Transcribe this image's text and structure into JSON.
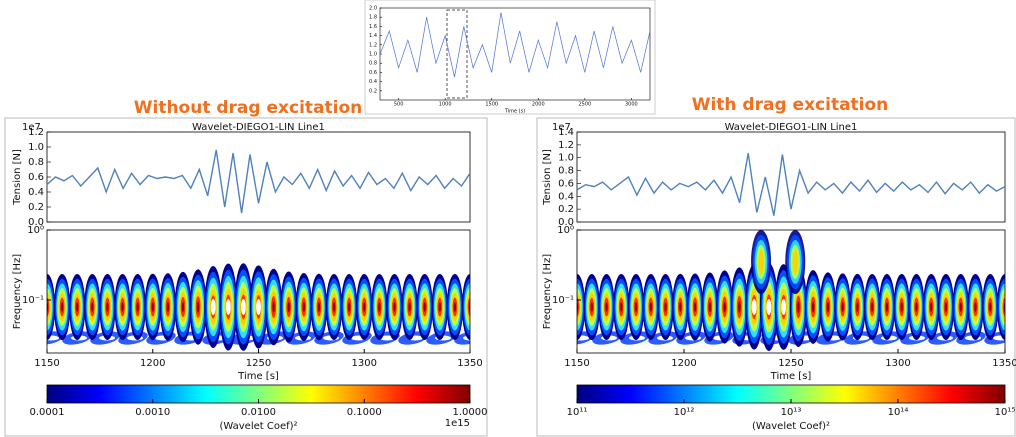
{
  "chart_data": [
    {
      "type": "line",
      "xlabel": "Time (s)",
      "xlim": [
        300,
        3200
      ],
      "ylim": [
        0,
        2
      ],
      "xticks": [
        500,
        1000,
        1500,
        2000,
        2500,
        3000
      ],
      "yticks": [
        0.2,
        0.4,
        0.6,
        0.8,
        {
          "value": 1,
          "label": "1.0"
        },
        1.2,
        1.4,
        1.6,
        1.8,
        {
          "value": 2,
          "label": "2.0"
        }
      ],
      "x": [
        300,
        400,
        500,
        600,
        700,
        800,
        900,
        1000,
        1100,
        1200,
        1300,
        1400,
        1500,
        1600,
        1700,
        1800,
        1900,
        2000,
        2100,
        2200,
        2300,
        2400,
        2500,
        2600,
        2700,
        2800,
        2900,
        3000,
        3100,
        3200
      ],
      "series": [
        {
          "color": "#4a72d8",
          "values": [
            1.0,
            1.5,
            0.7,
            1.3,
            0.6,
            1.8,
            0.8,
            1.4,
            0.5,
            1.6,
            0.7,
            1.2,
            0.6,
            1.9,
            0.8,
            1.5,
            0.6,
            1.3,
            0.7,
            1.7,
            0.8,
            1.4,
            0.6,
            1.5,
            0.7,
            1.6,
            0.8,
            1.3,
            0.6,
            1.5
          ]
        }
      ]
    },
    {
      "type": "line",
      "annotation": "Without drag excitation",
      "title": "Wavelet-DIEGO1-LIN Line1",
      "ylabel": "Tension [N]",
      "offset": "1e7",
      "xlim": [
        1150,
        1350
      ],
      "ylim": [
        0,
        1.2
      ],
      "yticks": [
        {
          "value": 0,
          "label": "0.0"
        },
        0.2,
        0.4,
        0.6,
        0.8,
        {
          "value": 1,
          "label": "1.0"
        },
        1.2
      ],
      "x": [
        1150,
        1154,
        1158,
        1162,
        1166,
        1170,
        1174,
        1178,
        1182,
        1186,
        1190,
        1194,
        1198,
        1202,
        1206,
        1210,
        1214,
        1218,
        1222,
        1226,
        1230,
        1234,
        1238,
        1242,
        1246,
        1250,
        1254,
        1258,
        1262,
        1266,
        1270,
        1274,
        1278,
        1282,
        1286,
        1290,
        1294,
        1298,
        1302,
        1306,
        1310,
        1314,
        1318,
        1322,
        1326,
        1330,
        1334,
        1338,
        1342,
        1346,
        1350
      ],
      "color": "#4f81bd",
      "values": [
        0.5,
        0.6,
        0.55,
        0.62,
        0.48,
        0.6,
        0.72,
        0.4,
        0.7,
        0.45,
        0.65,
        0.5,
        0.62,
        0.58,
        0.6,
        0.58,
        0.62,
        0.45,
        0.7,
        0.35,
        0.96,
        0.2,
        0.92,
        0.12,
        0.9,
        0.25,
        0.8,
        0.4,
        0.6,
        0.5,
        0.65,
        0.45,
        0.7,
        0.42,
        0.68,
        0.48,
        0.62,
        0.45,
        0.66,
        0.5,
        0.58,
        0.45,
        0.65,
        0.42,
        0.6,
        0.5,
        0.62,
        0.45,
        0.58,
        0.48,
        0.65
      ]
    },
    {
      "type": "heatmap",
      "ylabel": "Frequency [Hz]",
      "xlabel": "Time [s]",
      "xlim": [
        1150,
        1350
      ],
      "xticks": [
        1150,
        1200,
        1250,
        1300,
        1350
      ],
      "ylim": [
        0.0175,
        1
      ],
      "log_y": true,
      "yticks": [
        {
          "value": 1,
          "label": "10⁰"
        },
        {
          "value": 0.1,
          "label": "10⁻¹"
        }
      ],
      "colorbar": {
        "label": "(Wavelet Coef)²",
        "offset": "1e15",
        "lim": [
          0.0001,
          1
        ],
        "log": true,
        "ticks": [
          0.0001,
          {
            "value": 0.001,
            "label": "0.0010"
          },
          {
            "value": 0.01,
            "label": "0.0100"
          },
          {
            "value": 0.1,
            "label": "0.1000"
          },
          {
            "value": 1,
            "label": "1.0000"
          }
        ]
      }
    },
    {
      "type": "line",
      "annotation": "With drag excitation",
      "title": "Wavelet-DIEGO1-LIN Line1",
      "ylabel": "Tension [N]",
      "offset": "1e7",
      "xlim": [
        1150,
        1350
      ],
      "ylim": [
        0,
        1.4
      ],
      "yticks": [
        {
          "value": 0,
          "label": "0.0"
        },
        0.2,
        0.4,
        0.6,
        0.8,
        {
          "value": 1,
          "label": "1.0"
        },
        1.2,
        1.4
      ],
      "x": [
        1150,
        1154,
        1158,
        1162,
        1166,
        1170,
        1174,
        1178,
        1182,
        1186,
        1190,
        1194,
        1198,
        1202,
        1206,
        1210,
        1214,
        1218,
        1222,
        1226,
        1230,
        1234,
        1238,
        1242,
        1246,
        1250,
        1254,
        1258,
        1262,
        1266,
        1270,
        1274,
        1278,
        1282,
        1286,
        1290,
        1294,
        1298,
        1302,
        1306,
        1310,
        1314,
        1318,
        1322,
        1326,
        1330,
        1334,
        1338,
        1342,
        1346,
        1350
      ],
      "color": "#4f81bd",
      "values": [
        0.5,
        0.58,
        0.55,
        0.62,
        0.5,
        0.6,
        0.7,
        0.42,
        0.68,
        0.45,
        0.62,
        0.5,
        0.6,
        0.55,
        0.62,
        0.5,
        0.65,
        0.45,
        0.7,
        0.3,
        1.07,
        0.15,
        0.7,
        0.1,
        1.05,
        0.2,
        0.8,
        0.45,
        0.62,
        0.5,
        0.6,
        0.45,
        0.62,
        0.48,
        0.65,
        0.46,
        0.6,
        0.48,
        0.62,
        0.5,
        0.58,
        0.46,
        0.62,
        0.44,
        0.6,
        0.5,
        0.62,
        0.45,
        0.58,
        0.48,
        0.55
      ]
    },
    {
      "type": "heatmap",
      "ylabel": "Frequency [Hz]",
      "xlabel": "Time [s]",
      "xlim": [
        1150,
        1350
      ],
      "xticks": [
        1150,
        1200,
        1250,
        1300,
        1350
      ],
      "ylim": [
        0.0175,
        1
      ],
      "log_y": true,
      "yticks": [
        {
          "value": 1,
          "label": "10⁰"
        },
        {
          "value": 0.1,
          "label": "10⁻¹"
        }
      ],
      "colorbar": {
        "label": "(Wavelet Coef)²",
        "lim": [
          100000000000.0,
          1000000000000000.0
        ],
        "log": true,
        "ticks": [
          {
            "value": 100000000000.0,
            "label": "10¹¹"
          },
          {
            "value": 1000000000000.0,
            "label": "10¹²"
          },
          {
            "value": 10000000000000.0,
            "label": "10¹³"
          },
          {
            "value": 100000000000000.0,
            "label": "10¹⁴"
          },
          {
            "value": 1000000000000000.0,
            "label": "10¹⁵"
          }
        ]
      }
    }
  ]
}
